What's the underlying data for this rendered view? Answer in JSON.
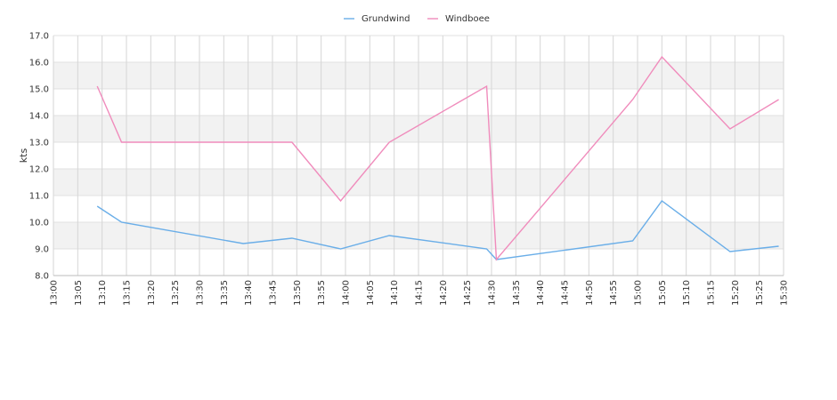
{
  "chart_data": {
    "type": "line",
    "y_label": "kts",
    "grid": true,
    "bands": true,
    "legend": "top",
    "xlim": [
      "13:00",
      "15:30"
    ],
    "xticks": [
      "13:00",
      "13:05",
      "13:10",
      "13:15",
      "13:20",
      "13:25",
      "13:30",
      "13:35",
      "13:40",
      "13:45",
      "13:50",
      "13:55",
      "14:00",
      "14:05",
      "14:10",
      "14:15",
      "14:20",
      "14:25",
      "14:30",
      "14:35",
      "14:40",
      "14:45",
      "14:50",
      "14:55",
      "15:00",
      "15:05",
      "15:10",
      "15:15",
      "15:20",
      "15:25",
      "15:30"
    ],
    "ylim": [
      8,
      17
    ],
    "yticks": [
      {
        "value": 8,
        "label": "8.0"
      },
      {
        "value": 9,
        "label": "9.0"
      },
      {
        "value": 10,
        "label": "10.0"
      },
      {
        "value": 11,
        "label": "11.0"
      },
      {
        "value": 12,
        "label": "12.0"
      },
      {
        "value": 13,
        "label": "13.0"
      },
      {
        "value": 14,
        "label": "14.0"
      },
      {
        "value": 15,
        "label": "15.0"
      },
      {
        "value": 16,
        "label": "16.0"
      },
      {
        "value": 17,
        "label": "17.0"
      }
    ],
    "series": [
      {
        "name": "Grundwind",
        "color": "#6aaee8",
        "x": [
          "13:09",
          "13:14",
          "13:39",
          "13:49",
          "13:59",
          "14:09",
          "14:29",
          "14:31",
          "14:59",
          "15:05",
          "15:19",
          "15:29"
        ],
        "values": [
          10.6,
          10.0,
          9.2,
          9.4,
          9.0,
          9.5,
          9.0,
          8.6,
          9.3,
          10.8,
          8.9,
          9.1
        ]
      },
      {
        "name": "Windboee",
        "color": "#f08cbc",
        "x": [
          "13:09",
          "13:14",
          "13:49",
          "13:59",
          "14:09",
          "14:29",
          "14:31",
          "14:59",
          "15:05",
          "15:19",
          "15:29"
        ],
        "values": [
          15.1,
          13.0,
          13.0,
          10.8,
          13.0,
          15.1,
          8.6,
          14.6,
          16.2,
          13.5,
          14.6
        ]
      }
    ]
  }
}
